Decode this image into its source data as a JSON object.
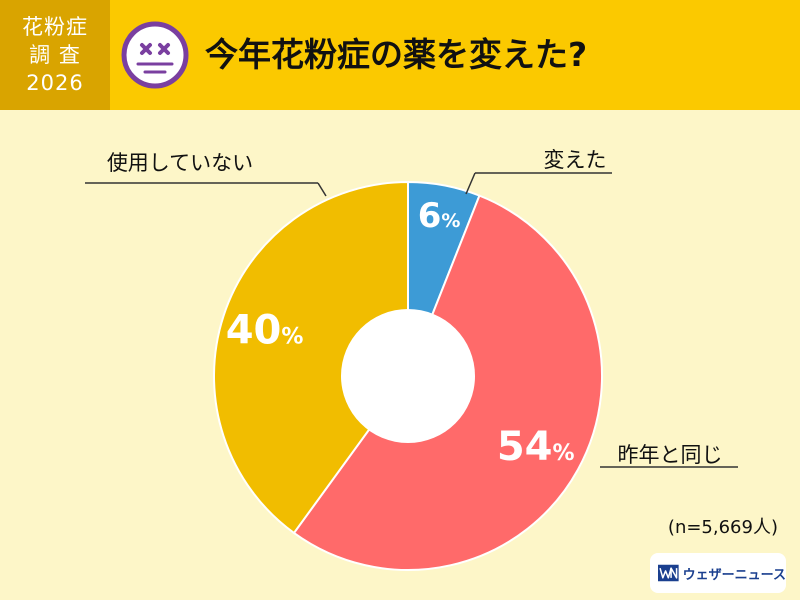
{
  "badge": {
    "line1": "花粉症",
    "line2": "調 査",
    "line3": "2026"
  },
  "title": "今年花粉症の薬を変えた?",
  "chart_data": {
    "type": "pie",
    "donut": true,
    "unit": "%",
    "slices": [
      {
        "label": "変えた",
        "value": 6,
        "color": "#3d9bd6"
      },
      {
        "label": "昨年と同じ",
        "value": 54,
        "color": "#ff6a6a"
      },
      {
        "label": "使用していない",
        "value": 40,
        "color": "#f1bd00"
      }
    ]
  },
  "sample_size": "(n=5,669人)",
  "logo": {
    "text": "ウェザーニュース",
    "mark": "WN"
  }
}
